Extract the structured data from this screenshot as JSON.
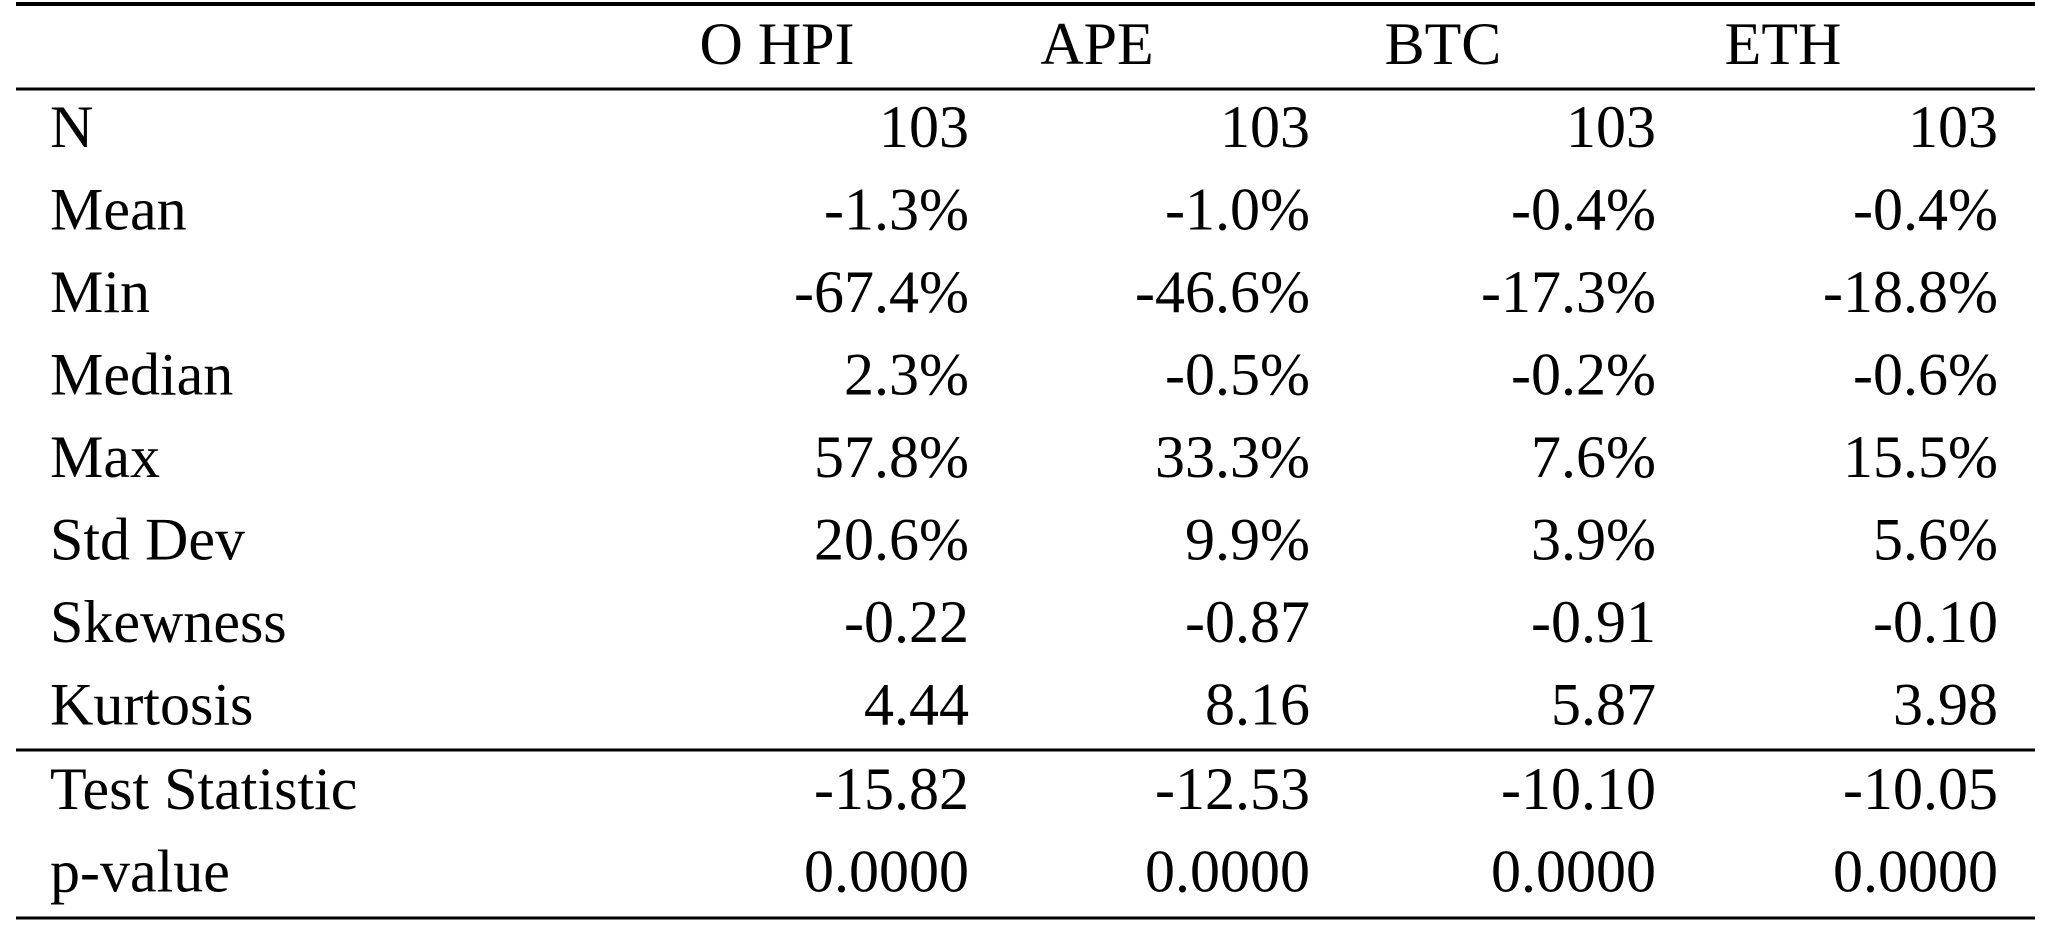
{
  "table": {
    "columns": [
      "O HPI",
      "APE",
      "BTC",
      "ETH"
    ],
    "rows": [
      {
        "label": "N",
        "cells": [
          "103",
          "103",
          "103",
          "103"
        ]
      },
      {
        "label": "Mean",
        "cells": [
          "-1.3%",
          "-1.0%",
          "-0.4%",
          "-0.4%"
        ]
      },
      {
        "label": "Min",
        "cells": [
          "-67.4%",
          "-46.6%",
          "-17.3%",
          "-18.8%"
        ]
      },
      {
        "label": "Median",
        "cells": [
          "2.3%",
          "-0.5%",
          "-0.2%",
          "-0.6%"
        ]
      },
      {
        "label": "Max",
        "cells": [
          "57.8%",
          "33.3%",
          "7.6%",
          "15.5%"
        ]
      },
      {
        "label": "Std Dev",
        "cells": [
          "20.6%",
          "9.9%",
          "3.9%",
          "5.6%"
        ]
      },
      {
        "label": "Skewness",
        "cells": [
          "-0.22",
          "-0.87",
          "-0.91",
          "-0.10"
        ]
      },
      {
        "label": "Kurtosis",
        "cells": [
          "4.44",
          "8.16",
          "5.87",
          "3.98"
        ]
      }
    ],
    "test_rows": [
      {
        "label": "Test Statistic",
        "cells": [
          "-15.82",
          "-12.53",
          "-10.10",
          "-10.05"
        ]
      },
      {
        "label": "p-value",
        "cells": [
          "0.0000",
          "0.0000",
          "0.0000",
          "0.0000"
        ]
      }
    ]
  }
}
